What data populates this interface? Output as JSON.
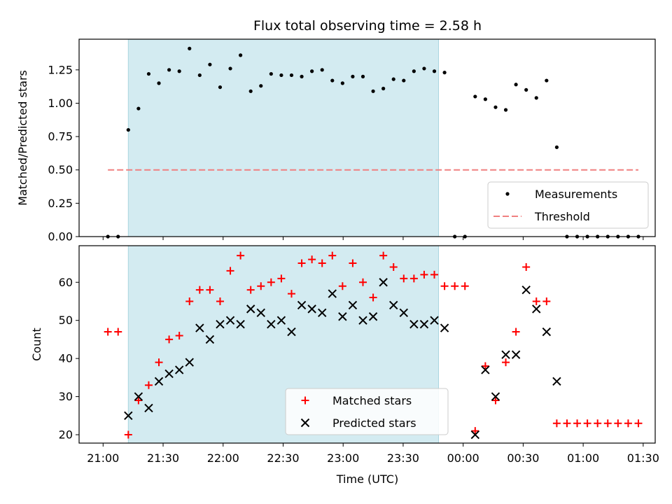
{
  "chart_data": {
    "type": "scatter",
    "title": "Flux total observing time = 2.58 h",
    "xlabel": "Time (UTC)",
    "x_unit": "time of day, hours (values past 24 are after midnight)",
    "xlim": [
      20.8,
      25.6
    ],
    "x_ticks": [
      {
        "value": 21.0,
        "label": "21:00"
      },
      {
        "value": 21.5,
        "label": "21:30"
      },
      {
        "value": 22.0,
        "label": "22:00"
      },
      {
        "value": 22.5,
        "label": "22:30"
      },
      {
        "value": 23.0,
        "label": "23:00"
      },
      {
        "value": 23.5,
        "label": "23:30"
      },
      {
        "value": 24.0,
        "label": "00:00"
      },
      {
        "value": 24.5,
        "label": "00:30"
      },
      {
        "value": 25.0,
        "label": "01:00"
      },
      {
        "value": 25.5,
        "label": "01:30"
      }
    ],
    "x": [
      21.04,
      21.125,
      21.21,
      21.295,
      21.38,
      21.465,
      21.55,
      21.635,
      21.72,
      21.805,
      21.89,
      21.975,
      22.06,
      22.145,
      22.23,
      22.315,
      22.4,
      22.485,
      22.57,
      22.655,
      22.74,
      22.825,
      22.91,
      22.995,
      23.08,
      23.165,
      23.25,
      23.335,
      23.42,
      23.505,
      23.59,
      23.675,
      23.76,
      23.845,
      23.93,
      24.015,
      24.1,
      24.185,
      24.27,
      24.355,
      24.44,
      24.525,
      24.61,
      24.695,
      24.78,
      24.865,
      24.95,
      25.035,
      25.12,
      25.205,
      25.29,
      25.375,
      25.46
    ],
    "shaded_region": [
      21.21,
      23.795
    ],
    "panels": [
      {
        "ylabel": "Matched/Predicted stars",
        "ylim": [
          0,
          1.48
        ],
        "yticks": [
          {
            "value": 0.0,
            "label": "0.00"
          },
          {
            "value": 0.25,
            "label": "0.25"
          },
          {
            "value": 0.5,
            "label": "0.50"
          },
          {
            "value": 0.75,
            "label": "0.75"
          },
          {
            "value": 1.0,
            "label": "1.00"
          },
          {
            "value": 1.25,
            "label": "1.25"
          }
        ],
        "threshold": {
          "name": "Threshold",
          "value": 0.5,
          "x_range": [
            21.04,
            25.46
          ],
          "color": "#f08080"
        },
        "series": [
          {
            "name": "Measurements",
            "marker": "dot",
            "color": "#000000",
            "values": [
              0.0,
              0.0,
              0.8,
              0.96,
              1.22,
              1.15,
              1.25,
              1.24,
              1.41,
              1.21,
              1.29,
              1.12,
              1.26,
              1.36,
              1.09,
              1.13,
              1.22,
              1.21,
              1.21,
              1.2,
              1.24,
              1.25,
              1.17,
              1.15,
              1.2,
              1.2,
              1.09,
              1.11,
              1.18,
              1.17,
              1.24,
              1.26,
              1.24,
              1.23,
              0.0,
              0.0,
              1.05,
              1.03,
              0.97,
              0.95,
              1.14,
              1.1,
              1.04,
              1.17,
              0.67,
              0.0,
              0.0,
              0.0,
              0.0,
              0.0,
              0.0,
              0.0,
              0.0
            ]
          }
        ],
        "legend_position": "bottom-right"
      },
      {
        "ylabel": "Count",
        "ylim": [
          17.8,
          69.6
        ],
        "yticks": [
          {
            "value": 20,
            "label": "20"
          },
          {
            "value": 30,
            "label": "30"
          },
          {
            "value": 40,
            "label": "40"
          },
          {
            "value": 50,
            "label": "50"
          },
          {
            "value": 60,
            "label": "60"
          }
        ],
        "series": [
          {
            "name": "Matched stars",
            "marker": "plus",
            "color": "#ff0000",
            "values": [
              47,
              47,
              20,
              29,
              33,
              39,
              45,
              46,
              55,
              58,
              58,
              55,
              63,
              67,
              58,
              59,
              60,
              61,
              57,
              65,
              66,
              65,
              67,
              59,
              65,
              60,
              56,
              67,
              64,
              61,
              61,
              62,
              62,
              59,
              59,
              59,
              21,
              38,
              29,
              39,
              47,
              64,
              55,
              55,
              23,
              23,
              23,
              23,
              23,
              23,
              23,
              23,
              23
            ]
          },
          {
            "name": "Predicted stars",
            "marker": "x",
            "color": "#000000",
            "values": [
              null,
              null,
              25,
              30,
              27,
              34,
              36,
              37,
              39,
              48,
              45,
              49,
              50,
              49,
              53,
              52,
              49,
              50,
              47,
              54,
              53,
              52,
              57,
              51,
              54,
              50,
              51,
              60,
              54,
              52,
              49,
              49,
              50,
              48,
              null,
              null,
              20,
              37,
              30,
              41,
              41,
              58,
              53,
              47,
              34,
              null,
              null,
              null,
              null,
              null,
              null,
              null,
              null
            ]
          }
        ],
        "legend_position": "bottom-center"
      }
    ],
    "colors": {
      "shade": "#d3ebf1",
      "shade_edge": "#a9d6df"
    }
  }
}
